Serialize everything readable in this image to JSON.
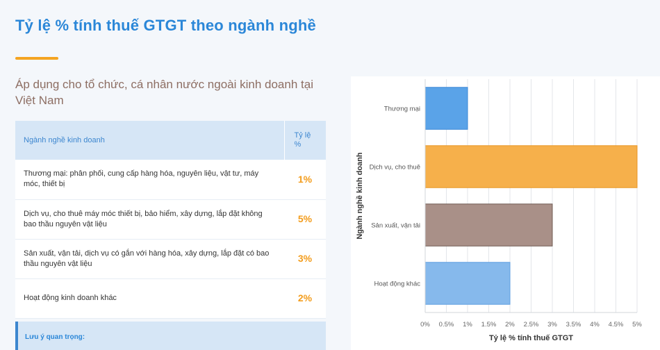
{
  "title": "Tỷ lệ % tính thuế GTGT theo ngành nghề",
  "subtitle": "Áp dụng cho tổ chức, cá nhân nước ngoài kinh doanh tại Việt Nam",
  "table": {
    "header_name": "Ngành nghề kinh doanh",
    "header_rate": "Tỷ lệ %",
    "rows": [
      {
        "name": "Thương mại: phân phối, cung cấp hàng hóa, nguyên liệu, vật tư, máy móc, thiết bị",
        "rate": "1%"
      },
      {
        "name": "Dịch vụ, cho thuê máy móc thiết bị, bảo hiểm, xây dựng, lắp đặt không bao thầu nguyên vật liệu",
        "rate": "5%"
      },
      {
        "name": "Sản xuất, vận tải, dịch vụ có gắn với hàng hóa, xây dựng, lắp đặt có bao thầu nguyên vật liệu",
        "rate": "3%"
      },
      {
        "name": "Hoạt động kinh doanh khác",
        "rate": "2%"
      }
    ]
  },
  "note": {
    "label": "Lưu ý quan trọng:"
  },
  "colors": {
    "title": "#2b87d8",
    "accent": "#f4a422",
    "rate": "#f39c1b"
  },
  "chart_data": {
    "type": "bar",
    "orientation": "horizontal",
    "categories": [
      "Thương mại",
      "Dịch vụ, cho thuê",
      "Sản xuất, vận tải",
      "Hoạt động khác"
    ],
    "values": [
      1,
      5,
      3,
      2
    ],
    "colors": [
      "#5aa3e8",
      "#f6b04b",
      "#a99088",
      "#86b9ec"
    ],
    "edge_colors": [
      "#3b87d6",
      "#e89624",
      "#6f5a52",
      "#5d9ee0"
    ],
    "xlabel": "Tỷ lệ % tính thuế GTGT",
    "ylabel": "Ngành nghề kinh doanh",
    "xlim": [
      0,
      5
    ],
    "xticks": [
      "0%",
      "0.5%",
      "1%",
      "1.5%",
      "2%",
      "2.5%",
      "3%",
      "3.5%",
      "4%",
      "4.5%",
      "5%"
    ],
    "grid": true
  }
}
